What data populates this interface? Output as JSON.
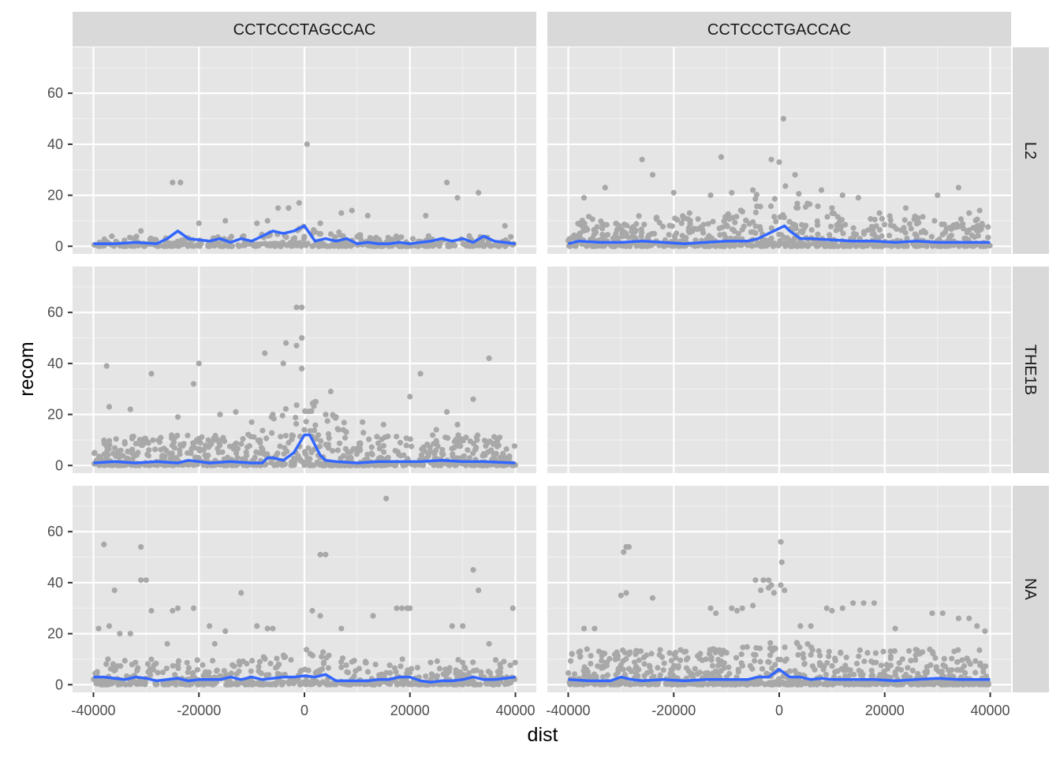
{
  "chart_data": {
    "type": "scatter",
    "xlabel": "dist",
    "ylabel": "recom",
    "xlim": [
      -40000,
      40000
    ],
    "ylim": [
      0,
      75
    ],
    "x_ticks": [
      -40000,
      -20000,
      0,
      20000,
      40000
    ],
    "y_ticks": [
      0,
      20,
      40,
      60
    ],
    "column_facets": [
      "CCTCCCTAGCCAC",
      "CCTCCCTGACCAC"
    ],
    "row_facets": [
      "L2",
      "THE1B",
      "NA"
    ],
    "grid": true,
    "colors": {
      "points": "#a8a8a8",
      "smooth_line": "#3366ff",
      "panel_background": "#e5e5e5",
      "strip_background": "#d9d9d9"
    },
    "panels": [
      {
        "col": "CCTCCCTAGCCAC",
        "row": "L2",
        "empty": false,
        "smooth": {
          "x": [
            -40000,
            -36000,
            -32000,
            -28000,
            -26000,
            -24000,
            -22000,
            -18000,
            -16000,
            -14000,
            -12000,
            -10000,
            -8000,
            -6000,
            -4000,
            -2000,
            0,
            2000,
            4000,
            6000,
            8000,
            10000,
            12000,
            14000,
            16000,
            18000,
            20000,
            22000,
            24000,
            26000,
            28000,
            30000,
            32000,
            34000,
            36000,
            40000
          ],
          "y": [
            1,
            1,
            1.5,
            1,
            3,
            6,
            3,
            2,
            3,
            1.5,
            3,
            2,
            4,
            6,
            5,
            6,
            8,
            2,
            3,
            2,
            3,
            1,
            1.5,
            1,
            1,
            1.5,
            1,
            1.5,
            2,
            3,
            2,
            3,
            1.5,
            4,
            2,
            1
          ]
        },
        "outliers": [
          [
            -25000,
            25
          ],
          [
            -23500,
            25
          ],
          [
            500,
            40
          ],
          [
            -1000,
            17
          ],
          [
            -3000,
            15
          ],
          [
            -5000,
            15
          ],
          [
            -7000,
            10
          ],
          [
            3000,
            9
          ],
          [
            7000,
            13
          ],
          [
            9000,
            14
          ],
          [
            12000,
            12
          ],
          [
            27000,
            25
          ],
          [
            29000,
            19
          ],
          [
            33000,
            21
          ],
          [
            38000,
            8
          ],
          [
            -31000,
            6
          ],
          [
            -20000,
            9
          ],
          [
            -15000,
            10
          ],
          [
            -9000,
            9
          ],
          [
            23000,
            12
          ]
        ],
        "dense": {
          "xmin": -40000,
          "xmax": 40000,
          "count": 300,
          "ymax_center": 8,
          "ymax_edge": 4
        }
      },
      {
        "col": "CCTCCCTGACCAC",
        "row": "L2",
        "empty": false,
        "smooth": {
          "x": [
            -40000,
            -38000,
            -34000,
            -30000,
            -26000,
            -22000,
            -18000,
            -14000,
            -10000,
            -6000,
            -4000,
            -2000,
            0,
            1000,
            2000,
            4000,
            6000,
            10000,
            14000,
            18000,
            22000,
            26000,
            30000,
            34000,
            40000
          ],
          "y": [
            1,
            2,
            1.5,
            1.5,
            2,
            1.5,
            1,
            1.5,
            2,
            2,
            3,
            5,
            7,
            8,
            6,
            3,
            3,
            2.5,
            2,
            2,
            1.5,
            2,
            1.5,
            1.5,
            1.5
          ]
        },
        "outliers": [
          [
            800,
            50
          ],
          [
            -26000,
            34
          ],
          [
            -11000,
            35
          ],
          [
            -1500,
            34
          ],
          [
            0,
            33
          ],
          [
            -24000,
            28
          ],
          [
            -33000,
            23
          ],
          [
            -20000,
            21
          ],
          [
            -9000,
            21
          ],
          [
            8000,
            22
          ],
          [
            12000,
            20
          ],
          [
            15000,
            19
          ],
          [
            19000,
            13
          ],
          [
            24000,
            15
          ],
          [
            30000,
            20
          ],
          [
            34000,
            23
          ],
          [
            -37000,
            19
          ],
          [
            -13000,
            20
          ],
          [
            3000,
            28
          ],
          [
            -5000,
            22
          ],
          [
            36000,
            13
          ],
          [
            38000,
            14
          ],
          [
            10000,
            15
          ],
          [
            -17000,
            13
          ]
        ],
        "dense": {
          "xmin": -40000,
          "xmax": 40000,
          "count": 600,
          "ymax_center": 25,
          "ymax_edge": 12
        }
      },
      {
        "col": "CCTCCCTAGCCAC",
        "row": "THE1B",
        "empty": false,
        "smooth": {
          "x": [
            -40000,
            -36000,
            -32000,
            -28000,
            -24000,
            -22000,
            -18000,
            -14000,
            -10000,
            -8000,
            -7000,
            -6000,
            -4000,
            -2000,
            0,
            1000,
            2000,
            3000,
            4000,
            6000,
            10000,
            14000,
            18000,
            22000,
            26000,
            30000,
            34000,
            40000
          ],
          "y": [
            1,
            1.5,
            1,
            1.5,
            1,
            2,
            1,
            1.5,
            1,
            1,
            3,
            3,
            2,
            5,
            12,
            12,
            8,
            4,
            2,
            1.5,
            1,
            1.5,
            1.5,
            1.5,
            2,
            1.5,
            1.5,
            1
          ]
        },
        "outliers": [
          [
            -1500,
            62
          ],
          [
            -500,
            62
          ],
          [
            -500,
            50
          ],
          [
            -1500,
            47
          ],
          [
            -3500,
            48
          ],
          [
            -4000,
            40
          ],
          [
            -7500,
            44
          ],
          [
            -20000,
            40
          ],
          [
            -37500,
            39
          ],
          [
            -29000,
            36
          ],
          [
            -21000,
            32
          ],
          [
            -13000,
            21
          ],
          [
            -16000,
            20
          ],
          [
            22000,
            36
          ],
          [
            35000,
            42
          ],
          [
            37000,
            11
          ],
          [
            20000,
            27
          ],
          [
            5000,
            29
          ],
          [
            -500,
            38
          ],
          [
            -37000,
            23
          ],
          [
            -24000,
            19
          ],
          [
            -33000,
            22
          ],
          [
            32000,
            26
          ],
          [
            29000,
            16
          ],
          [
            15000,
            16
          ],
          [
            11000,
            17
          ],
          [
            -10000,
            17
          ],
          [
            25000,
            14
          ],
          [
            -6000,
            20
          ],
          [
            27000,
            21
          ]
        ],
        "dense": {
          "xmin": -40000,
          "xmax": 40000,
          "count": 650,
          "ymax_center": 28,
          "ymax_edge": 12
        }
      },
      {
        "col": "CCTCCCTGACCAC",
        "row": "THE1B",
        "empty": true
      },
      {
        "col": "CCTCCCTAGCCAC",
        "row": "NA",
        "empty": false,
        "smooth": {
          "x": [
            -40000,
            -38000,
            -36000,
            -34000,
            -32000,
            -30000,
            -28000,
            -26000,
            -24000,
            -22000,
            -20000,
            -18000,
            -16000,
            -14000,
            -12000,
            -10000,
            -8000,
            -6000,
            -4000,
            -2000,
            0,
            2000,
            4000,
            6000,
            8000,
            10000,
            12000,
            14000,
            16000,
            18000,
            20000,
            22000,
            24000,
            26000,
            28000,
            30000,
            32000,
            34000,
            36000,
            38000,
            40000
          ],
          "y": [
            3,
            3,
            2.5,
            2,
            3,
            2.5,
            1.5,
            2,
            2.5,
            1.5,
            2,
            2,
            2,
            3,
            2,
            3,
            2,
            2.5,
            3,
            3,
            3.5,
            3,
            4,
            1.5,
            1.5,
            1.5,
            1.5,
            2,
            2,
            3,
            3,
            1.5,
            1,
            1.5,
            1.5,
            2,
            3,
            2,
            2,
            2.5,
            3
          ]
        },
        "outliers": [
          [
            15500,
            73
          ],
          [
            -38000,
            55
          ],
          [
            -31000,
            54
          ],
          [
            -31000,
            41
          ],
          [
            -30000,
            41
          ],
          [
            3000,
            51
          ],
          [
            4000,
            51
          ],
          [
            32000,
            45
          ],
          [
            33000,
            37
          ],
          [
            -36000,
            37
          ],
          [
            -12000,
            36
          ],
          [
            39500,
            30
          ],
          [
            -29000,
            29
          ],
          [
            -25000,
            29
          ],
          [
            -24000,
            30
          ],
          [
            -21000,
            30
          ],
          [
            13000,
            27
          ],
          [
            17500,
            30
          ],
          [
            18500,
            30
          ],
          [
            19500,
            30
          ],
          [
            20000,
            30
          ],
          [
            28000,
            23
          ],
          [
            30000,
            23
          ],
          [
            -39000,
            22
          ],
          [
            -37000,
            23
          ],
          [
            -35000,
            20
          ],
          [
            -33000,
            20
          ],
          [
            -7000,
            22
          ],
          [
            -6000,
            22
          ],
          [
            1500,
            29
          ],
          [
            3000,
            27
          ],
          [
            -9000,
            23
          ],
          [
            7000,
            22
          ],
          [
            -18000,
            23
          ],
          [
            -15000,
            21
          ],
          [
            -17000,
            16
          ],
          [
            35000,
            16
          ],
          [
            -26000,
            16
          ]
        ],
        "dense": {
          "xmin": -40000,
          "xmax": 40000,
          "count": 450,
          "ymax_center": 14,
          "ymax_edge": 10
        }
      },
      {
        "col": "CCTCCCTGACCAC",
        "row": "NA",
        "empty": false,
        "smooth": {
          "x": [
            -40000,
            -36000,
            -32000,
            -30000,
            -28000,
            -26000,
            -22000,
            -18000,
            -14000,
            -10000,
            -6000,
            -4000,
            -2000,
            0,
            2000,
            4000,
            6000,
            8000,
            10000,
            14000,
            18000,
            22000,
            26000,
            30000,
            34000,
            38000,
            40000
          ],
          "y": [
            2,
            1.5,
            1.5,
            3,
            2,
            1.5,
            2,
            1.5,
            2,
            2,
            2,
            3,
            3,
            6,
            3,
            3,
            2,
            2.5,
            2,
            2,
            2,
            1.5,
            2,
            2.5,
            2,
            2,
            2
          ]
        },
        "outliers": [
          [
            300,
            56
          ],
          [
            -29000,
            54
          ],
          [
            -28500,
            54
          ],
          [
            -29500,
            52
          ],
          [
            500,
            48
          ],
          [
            -3000,
            41
          ],
          [
            -2000,
            41
          ],
          [
            -4500,
            41
          ],
          [
            -1500,
            39
          ],
          [
            300,
            39
          ],
          [
            -30000,
            35
          ],
          [
            -24000,
            34
          ],
          [
            -29000,
            36
          ],
          [
            -8000,
            29
          ],
          [
            -9000,
            30
          ],
          [
            -7000,
            30
          ],
          [
            -5000,
            31
          ],
          [
            -3500,
            37
          ],
          [
            -2000,
            38
          ],
          [
            -1000,
            36
          ],
          [
            1000,
            37
          ],
          [
            14000,
            32
          ],
          [
            16000,
            32
          ],
          [
            18000,
            32
          ],
          [
            12000,
            30
          ],
          [
            10000,
            29
          ],
          [
            9000,
            30
          ],
          [
            29000,
            28
          ],
          [
            31000,
            28
          ],
          [
            34000,
            26
          ],
          [
            36000,
            26
          ],
          [
            37500,
            23
          ],
          [
            39000,
            21
          ],
          [
            -35000,
            22
          ],
          [
            -37000,
            22
          ],
          [
            -12000,
            28
          ],
          [
            -13000,
            30
          ],
          [
            4000,
            23
          ],
          [
            6000,
            23
          ],
          [
            22000,
            22
          ]
        ],
        "dense": {
          "xmin": -40000,
          "xmax": 40000,
          "count": 700,
          "ymax_center": 18,
          "ymax_edge": 14
        }
      }
    ]
  }
}
